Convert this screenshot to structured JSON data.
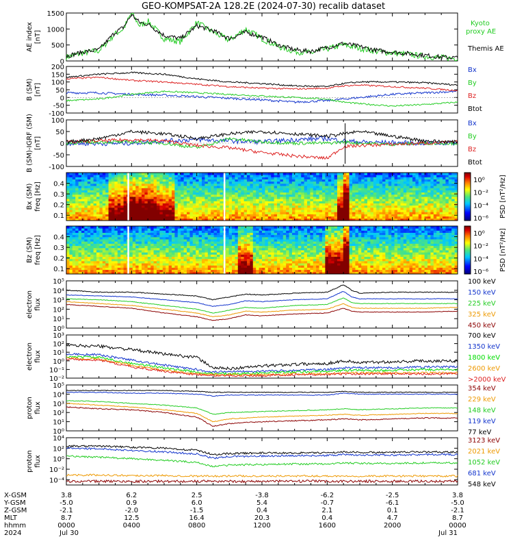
{
  "title": "GEO-KOMPSAT-2A 128.2E (2024-07-30) recalib dataset",
  "colors": {
    "black": "#000000",
    "green": "#22cc22",
    "red": "#dd2222",
    "blue": "#1133cc",
    "orange": "#ee9900",
    "darkred": "#8b0000",
    "bright_green": "#00dd00"
  },
  "chart_data": [
    {
      "type": "line",
      "panel": "ae",
      "ylabel": "AE index",
      "yunit": "[nT]",
      "ylim": [
        0,
        1500
      ],
      "yticks": [
        "0",
        "500",
        "1000",
        "1500"
      ],
      "x_hours": [
        0,
        1,
        2,
        3,
        3.5,
        4,
        4.5,
        5,
        6,
        7,
        8,
        9,
        10,
        11,
        12,
        13,
        14,
        15,
        16,
        17,
        18,
        19,
        20,
        21,
        22,
        23,
        24
      ],
      "series": [
        {
          "name": "Kyoto proxy AE",
          "color": "#22cc22",
          "values": [
            120,
            250,
            320,
            850,
            1000,
            1500,
            1100,
            1250,
            700,
            600,
            1200,
            900,
            650,
            1000,
            700,
            450,
            300,
            250,
            380,
            500,
            400,
            300,
            250,
            200,
            150,
            100,
            80
          ]
        },
        {
          "name": "Themis AE",
          "color": "#000000",
          "values": [
            150,
            280,
            350,
            900,
            1050,
            1450,
            1200,
            1150,
            800,
            700,
            1100,
            950,
            700,
            900,
            750,
            500,
            350,
            300,
            420,
            550,
            450,
            330,
            280,
            230,
            180,
            120,
            100
          ]
        }
      ]
    },
    {
      "type": "line",
      "panel": "bgsm",
      "ylabel": "B (SM)",
      "yunit": "[nT]",
      "ylim": [
        -100,
        200
      ],
      "yticks": [
        "-100",
        "-50",
        "0",
        "50",
        "100",
        "150",
        "200"
      ],
      "x_hours": [
        0,
        2,
        4,
        6,
        8,
        10,
        12,
        14,
        16,
        17,
        18,
        20,
        22,
        24
      ],
      "series": [
        {
          "name": "Bx",
          "color": "#1133cc",
          "values": [
            30,
            30,
            20,
            15,
            5,
            -5,
            -15,
            -30,
            -20,
            -10,
            0,
            20,
            30,
            40
          ]
        },
        {
          "name": "By",
          "color": "#22cc22",
          "values": [
            -20,
            -10,
            20,
            40,
            30,
            20,
            10,
            0,
            -10,
            -30,
            -40,
            -55,
            -45,
            -30
          ]
        },
        {
          "name": "Bz",
          "color": "#dd2222",
          "values": [
            120,
            130,
            110,
            100,
            85,
            70,
            60,
            55,
            60,
            75,
            80,
            70,
            60,
            45
          ]
        },
        {
          "name": "Btot",
          "color": "#000000",
          "values": [
            130,
            150,
            160,
            150,
            120,
            100,
            90,
            75,
            70,
            90,
            100,
            100,
            95,
            80
          ]
        }
      ]
    },
    {
      "type": "line",
      "panel": "bigrf",
      "ylabel": "B (SM)-IGRF (SM)",
      "yunit": "[nT]",
      "ylim": [
        -100,
        100
      ],
      "yticks": [
        "-100",
        "-50",
        "0",
        "50",
        "100"
      ],
      "x_hours": [
        0,
        2,
        4,
        6,
        8,
        10,
        12,
        14,
        16,
        17,
        18,
        20,
        22,
        24
      ],
      "series": [
        {
          "name": "Bx",
          "color": "#1133cc",
          "values": [
            0,
            -2,
            0,
            10,
            15,
            10,
            5,
            15,
            20,
            10,
            5,
            2,
            0,
            0
          ]
        },
        {
          "name": "By",
          "color": "#22cc22",
          "values": [
            0,
            5,
            5,
            0,
            -20,
            20,
            5,
            0,
            0,
            5,
            0,
            -5,
            0,
            0
          ]
        },
        {
          "name": "Bz",
          "color": "#dd2222",
          "values": [
            5,
            10,
            15,
            10,
            -10,
            -20,
            -40,
            -55,
            -65,
            -15,
            -10,
            -5,
            0,
            5
          ]
        },
        {
          "name": "Btot",
          "color": "#000000",
          "values": [
            5,
            20,
            50,
            40,
            20,
            40,
            50,
            40,
            30,
            40,
            50,
            30,
            10,
            5
          ]
        }
      ]
    },
    {
      "type": "heatmap",
      "panel": "spec_bx",
      "ylabel": "Bx (SM)",
      "yunit": "freq [Hz]",
      "ylim": [
        0.05,
        0.5
      ],
      "yticks": [
        "0.1",
        "0.2",
        "0.3",
        "0.4"
      ],
      "colorbar_label": "PSD [nT²/Hz]",
      "colorbar_ticks": [
        "10⁰",
        "10⁻²",
        "10⁻⁴",
        "10⁻⁶"
      ]
    },
    {
      "type": "heatmap",
      "panel": "spec_bz",
      "ylabel": "Bz (SM)",
      "yunit": "freq [Hz]",
      "ylim": [
        0.05,
        0.5
      ],
      "yticks": [
        "0.1",
        "0.2",
        "0.3",
        "0.4"
      ],
      "colorbar_label": "PSD [nT²/Hz]",
      "colorbar_ticks": [
        "10⁰",
        "10⁻²",
        "10⁻⁴",
        "10⁻⁶"
      ]
    },
    {
      "type": "line",
      "panel": "elec1",
      "ylabel": "electron flux",
      "ylim_log": [
        0,
        5
      ],
      "yticks": [
        "10⁰",
        "10¹",
        "10²",
        "10³",
        "10⁴",
        "10⁵"
      ],
      "x_hours": [
        0,
        2,
        4,
        6,
        8,
        9,
        10,
        11,
        12,
        14,
        16,
        17,
        17.5,
        18,
        20,
        22,
        24
      ],
      "series": [
        {
          "name": "100 keV",
          "color": "#000000",
          "values": [
            4.0,
            3.8,
            3.8,
            3.6,
            3.4,
            3.0,
            3.3,
            3.6,
            3.5,
            3.7,
            3.8,
            4.6,
            4.0,
            3.7,
            3.8,
            3.8,
            3.8
          ]
        },
        {
          "name": "150 keV",
          "color": "#1133cc",
          "values": [
            3.5,
            3.4,
            3.3,
            3.0,
            2.7,
            2.3,
            2.5,
            2.9,
            2.8,
            3.0,
            3.1,
            3.9,
            3.3,
            3.1,
            3.1,
            3.1,
            3.1
          ]
        },
        {
          "name": "225 keV",
          "color": "#22cc22",
          "values": [
            3.1,
            3.0,
            2.8,
            2.4,
            2.0,
            1.6,
            1.9,
            2.2,
            2.1,
            2.4,
            2.5,
            3.2,
            2.7,
            2.6,
            2.6,
            2.6,
            2.6
          ]
        },
        {
          "name": "325 keV",
          "color": "#ee9900",
          "values": [
            2.8,
            2.6,
            2.4,
            2.0,
            1.6,
            1.2,
            1.4,
            1.8,
            1.7,
            1.9,
            2.0,
            2.6,
            2.2,
            2.1,
            2.1,
            2.1,
            2.2
          ]
        },
        {
          "name": "450 keV",
          "color": "#8b0000",
          "values": [
            2.5,
            2.3,
            2.1,
            1.6,
            1.2,
            0.8,
            1.0,
            1.4,
            1.3,
            1.5,
            1.6,
            2.1,
            1.8,
            1.7,
            1.7,
            1.7,
            1.8
          ]
        }
      ]
    },
    {
      "type": "line",
      "panel": "elec2",
      "ylabel": "electron flux",
      "ylim_log": [
        -2,
        3
      ],
      "yticks": [
        "10⁻²",
        "10⁻¹",
        "10⁰",
        "10¹",
        "10²",
        "10³"
      ],
      "x_hours": [
        0,
        2,
        4,
        6,
        8,
        9,
        10,
        12,
        14,
        16,
        17,
        18,
        20,
        22,
        24
      ],
      "series": [
        {
          "name": "700 keV",
          "color": "#000000",
          "values": [
            1.8,
            1.7,
            1.3,
            0.8,
            0.4,
            -0.8,
            -0.9,
            -0.6,
            -0.4,
            -0.3,
            0.0,
            -0.2,
            -0.1,
            0.0,
            0.0
          ]
        },
        {
          "name": "1350 keV",
          "color": "#1133cc",
          "values": [
            0.8,
            0.7,
            0.1,
            -0.5,
            -1.0,
            -1.3,
            -1.2,
            -1.2,
            -1.1,
            -1.0,
            -0.8,
            -0.8,
            -0.8,
            -0.7,
            -0.7
          ]
        },
        {
          "name": "1800 keV",
          "color": "#00dd00",
          "values": [
            0.5,
            0.4,
            -0.3,
            -0.8,
            -1.3,
            -1.5,
            -1.5,
            -1.4,
            -1.3,
            -1.2,
            -1.1,
            -1.1,
            -1.1,
            -1.0,
            -1.0
          ]
        },
        {
          "name": "2600 keV",
          "color": "#ee9900",
          "values": [
            0.3,
            0.2,
            -0.5,
            -1.1,
            -1.5,
            -1.6,
            -1.6,
            -1.6,
            -1.5,
            -1.5,
            -1.4,
            -1.4,
            -1.4,
            -1.4,
            -1.4
          ]
        },
        {
          "name": ">2000 keV",
          "color": "#dd2222",
          "values": [
            0.2,
            0.1,
            -0.7,
            -1.2,
            -1.6,
            -1.7,
            -1.7,
            -1.7,
            -1.6,
            -1.6,
            -1.5,
            -1.5,
            -1.5,
            -1.5,
            -1.5
          ]
        }
      ]
    },
    {
      "type": "line",
      "panel": "prot1",
      "ylabel": "proton flux",
      "ylim_log": [
        0,
        5
      ],
      "yticks": [
        "10⁰",
        "10¹",
        "10²",
        "10³",
        "10⁴",
        "10⁵"
      ],
      "x_hours": [
        0,
        2,
        4,
        6,
        8,
        9,
        10,
        12,
        14,
        16,
        17,
        18,
        20,
        22,
        24
      ],
      "series": [
        {
          "name": "354 keV",
          "color": "#8b0000",
          "values": [
            2.6,
            2.4,
            2.3,
            2.0,
            1.5,
            0.5,
            0.8,
            1.0,
            1.1,
            1.2,
            1.3,
            1.2,
            1.3,
            1.4,
            1.4
          ]
        },
        {
          "name": "229 keV",
          "color": "#ee9900",
          "values": [
            3.0,
            2.8,
            2.6,
            2.3,
            1.9,
            1.0,
            1.3,
            1.5,
            1.6,
            1.7,
            1.8,
            1.7,
            1.8,
            1.9,
            1.9
          ]
        },
        {
          "name": "148 keV",
          "color": "#22cc22",
          "values": [
            3.3,
            3.2,
            3.0,
            2.8,
            2.5,
            1.8,
            2.0,
            2.1,
            2.2,
            2.3,
            2.4,
            2.3,
            2.4,
            2.5,
            2.5
          ]
        },
        {
          "name": "119 keV",
          "color": "#1133cc",
          "values": [
            4.2,
            4.2,
            4.1,
            4.1,
            4.0,
            3.8,
            3.9,
            3.9,
            3.9,
            3.9,
            4.1,
            4.0,
            4.0,
            4.0,
            4.0
          ]
        },
        {
          "name": "77 keV",
          "color": "#000000",
          "values": [
            4.4,
            4.4,
            4.4,
            4.4,
            4.3,
            4.2,
            4.2,
            4.2,
            4.2,
            4.2,
            4.3,
            4.2,
            4.2,
            4.2,
            4.2
          ]
        }
      ]
    },
    {
      "type": "line",
      "panel": "prot2",
      "ylabel": "proton flux",
      "ylim_log": [
        -5,
        4
      ],
      "yticks": [
        "10⁻⁴",
        "10⁻²",
        "10⁰",
        "10²",
        "10⁴"
      ],
      "x_hours": [
        0,
        2,
        4,
        6,
        8,
        9,
        10,
        12,
        14,
        16,
        17,
        18,
        20,
        22,
        24
      ],
      "series": [
        {
          "name": "3123 keV",
          "color": "#8b0000",
          "values": [
            -4.3,
            -4.3,
            -4.3,
            -4.3,
            -4.3,
            -4.3,
            -4.3,
            -4.3,
            -4.3,
            -4.3,
            -4.3,
            -4.3,
            -4.3,
            -4.3,
            -4.3
          ]
        },
        {
          "name": "2021 keV",
          "color": "#ee9900",
          "values": [
            -3.1,
            -3.1,
            -3.2,
            -3.2,
            -3.3,
            -3.3,
            -3.3,
            -3.3,
            -3.3,
            -3.3,
            -3.3,
            -3.3,
            -3.3,
            -3.3,
            -3.3
          ]
        },
        {
          "name": "1052 keV",
          "color": "#22cc22",
          "values": [
            0.5,
            0.3,
            0.0,
            -0.3,
            -0.7,
            -1.5,
            -1.2,
            -1.1,
            -1.0,
            -1.0,
            -0.8,
            -0.9,
            -0.9,
            -0.8,
            -0.8
          ]
        },
        {
          "name": "681 keV",
          "color": "#1133cc",
          "values": [
            2.0,
            1.9,
            1.6,
            1.3,
            0.9,
            0.1,
            0.4,
            0.5,
            0.6,
            0.6,
            0.8,
            0.7,
            0.7,
            0.8,
            0.8
          ]
        },
        {
          "name": "548 keV",
          "color": "#000000",
          "values": [
            2.4,
            2.4,
            2.2,
            2.0,
            1.6,
            0.8,
            1.0,
            1.1,
            1.1,
            1.1,
            1.3,
            1.2,
            1.2,
            1.3,
            1.3
          ]
        }
      ]
    }
  ],
  "ae_legend": [
    "Kyoto",
    "proxy AE",
    "Themis AE"
  ],
  "bgsm_legend": [
    "Bx",
    "By",
    "Bz",
    "Btot"
  ],
  "bigrf_legend": [
    "Bx",
    "By",
    "Bz",
    "Btot"
  ],
  "ephemeris": {
    "row_labels": [
      "X-GSM",
      "Y-GSM",
      "Z-GSM",
      "MLT",
      "hhmm",
      "2024"
    ],
    "columns": [
      {
        "x": "3.8",
        "y": "-5.0",
        "z": "-2.1",
        "mlt": "8.7",
        "hhmm": "0000",
        "date": "Jul 30"
      },
      {
        "x": "6.2",
        "y": "0.9",
        "z": "-2.0",
        "mlt": "12.5",
        "hhmm": "0400",
        "date": ""
      },
      {
        "x": "2.5",
        "y": "6.0",
        "z": "-1.5",
        "mlt": "16.4",
        "hhmm": "0800",
        "date": ""
      },
      {
        "x": "-3.8",
        "y": "5.4",
        "z": "0.4",
        "mlt": "20.3",
        "hhmm": "1200",
        "date": ""
      },
      {
        "x": "-6.2",
        "y": "-0.7",
        "z": "2.1",
        "mlt": "0.4",
        "hhmm": "1600",
        "date": ""
      },
      {
        "x": "-2.5",
        "y": "-6.1",
        "z": "0.1",
        "mlt": "4.7",
        "hhmm": "2000",
        "date": ""
      },
      {
        "x": "3.8",
        "y": "-5.0",
        "z": "-2.1",
        "mlt": "8.7",
        "hhmm": "0000",
        "date": "Jul 31"
      }
    ]
  }
}
